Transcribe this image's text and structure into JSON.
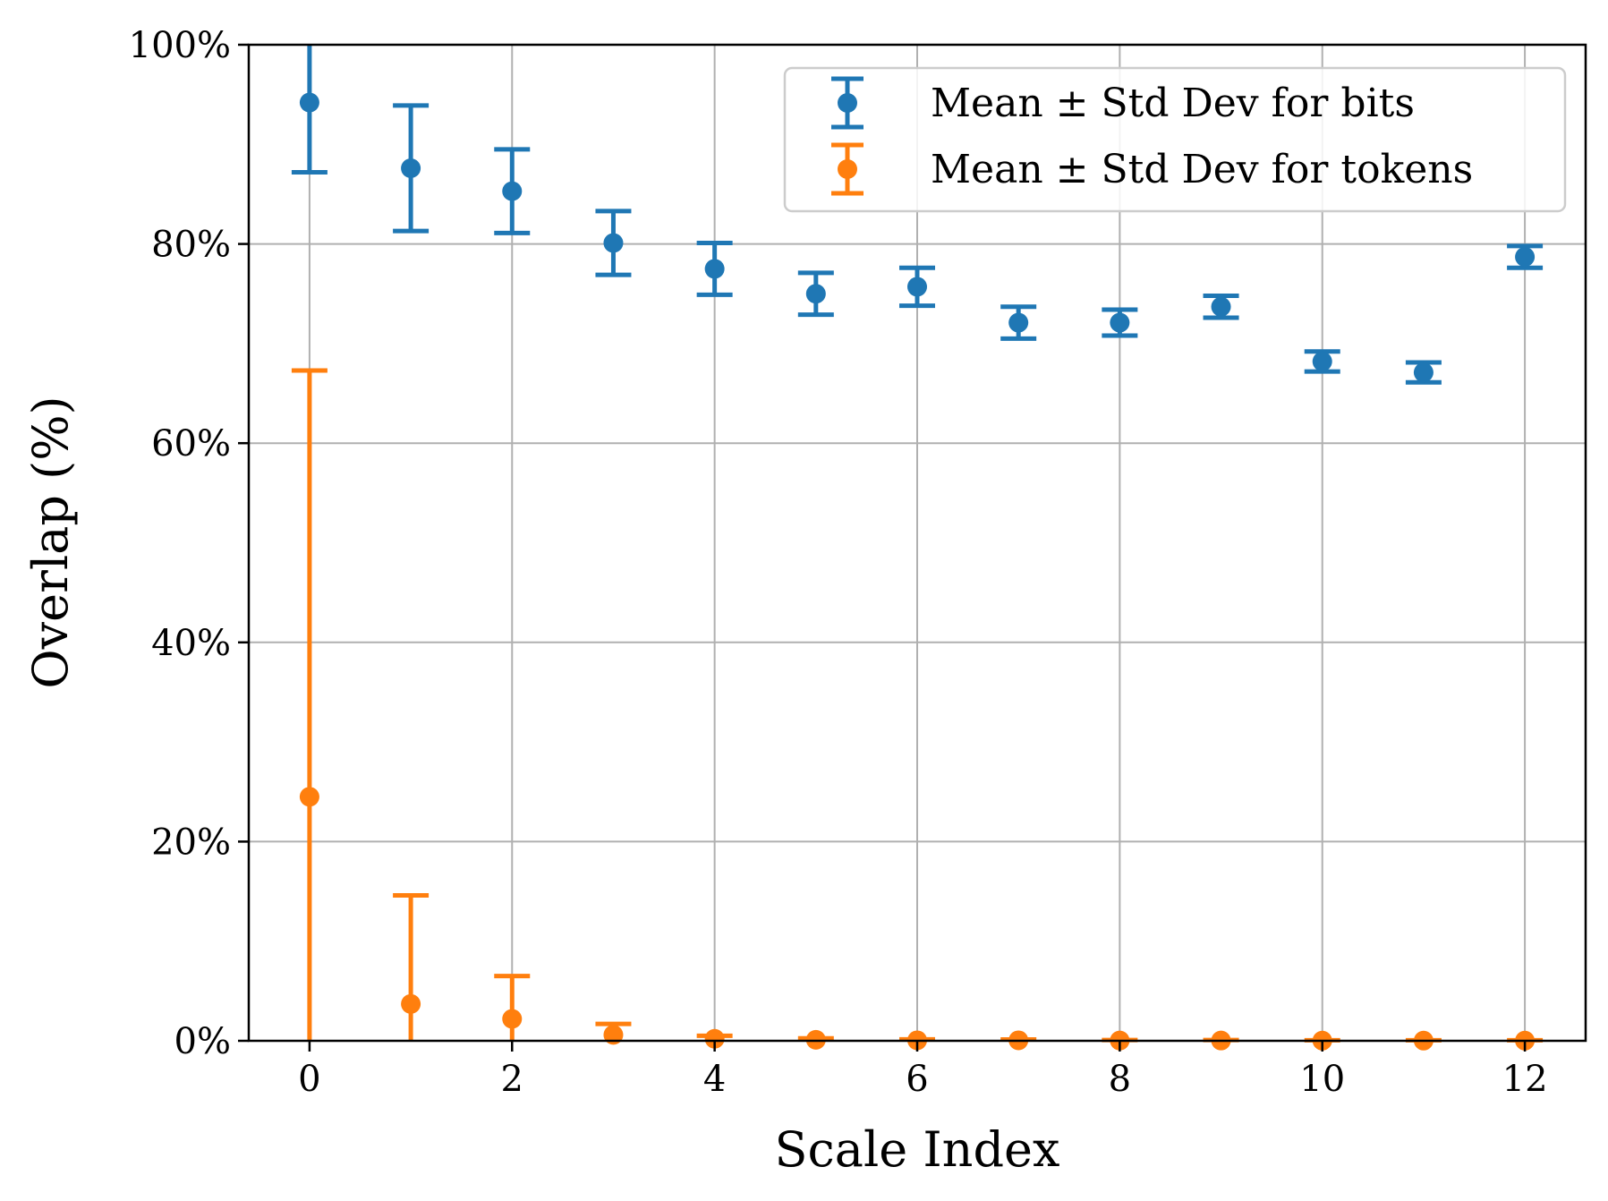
{
  "chart_data": {
    "type": "scatter",
    "title": "",
    "xlabel": "Scale Index",
    "ylabel": "Overlap (%)",
    "xlim": [
      -0.6,
      12.6
    ],
    "ylim": [
      0,
      100
    ],
    "xticks": [
      0,
      2,
      4,
      6,
      8,
      10,
      12
    ],
    "yticks": [
      0,
      20,
      40,
      60,
      80,
      100
    ],
    "ytick_labels": [
      "0%",
      "20%",
      "40%",
      "60%",
      "80%",
      "100%"
    ],
    "grid": true,
    "legend_position": "top-right",
    "x": [
      0,
      1,
      2,
      3,
      4,
      5,
      6,
      7,
      8,
      9,
      10,
      11,
      12
    ],
    "series": [
      {
        "name": "Mean ± Std Dev for bits",
        "color": "#1f77b4",
        "values": [
          94.2,
          87.6,
          85.3,
          80.1,
          77.5,
          75.0,
          75.7,
          72.1,
          72.1,
          73.7,
          68.2,
          67.1,
          78.7
        ],
        "errors": [
          7.0,
          6.3,
          4.2,
          3.2,
          2.6,
          2.1,
          1.9,
          1.6,
          1.3,
          1.1,
          1.0,
          1.0,
          1.1
        ]
      },
      {
        "name": "Mean ± Std Dev for tokens",
        "color": "#ff7f0e",
        "values": [
          24.5,
          3.7,
          2.2,
          0.6,
          0.2,
          0.1,
          0.05,
          0.05,
          0.03,
          0.03,
          0.02,
          0.02,
          0.02
        ],
        "errors": [
          42.8,
          10.9,
          4.3,
          1.1,
          0.3,
          0.15,
          0.1,
          0.08,
          0.05,
          0.05,
          0.04,
          0.04,
          0.04
        ]
      }
    ]
  }
}
